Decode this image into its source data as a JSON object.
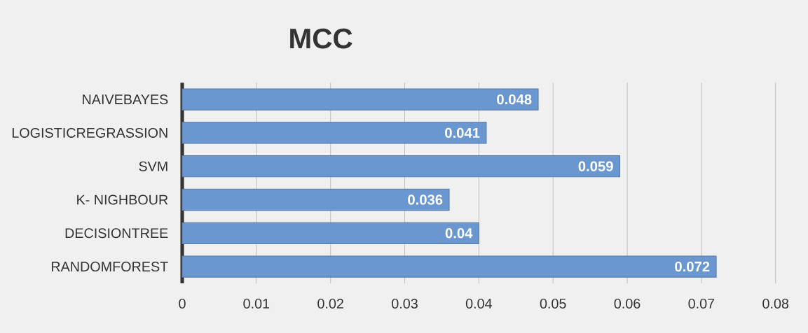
{
  "chart_data": {
    "type": "bar",
    "orientation": "horizontal",
    "title": "MCC",
    "categories": [
      "NAIVEBAYES",
      "LOGISTICREGRASSION",
      "SVM",
      "K- NIGHBOUR",
      "DECISIONTREE",
      "RANDOMFOREST"
    ],
    "values": [
      0.048,
      0.041,
      0.059,
      0.036,
      0.04,
      0.072
    ],
    "color": "#6a97cf",
    "xlim": [
      0,
      0.08
    ],
    "xticks": [
      0,
      0.01,
      0.02,
      0.03,
      0.04,
      0.05,
      0.06,
      0.07,
      0.08
    ],
    "grid": "x",
    "data_labels": true
  }
}
